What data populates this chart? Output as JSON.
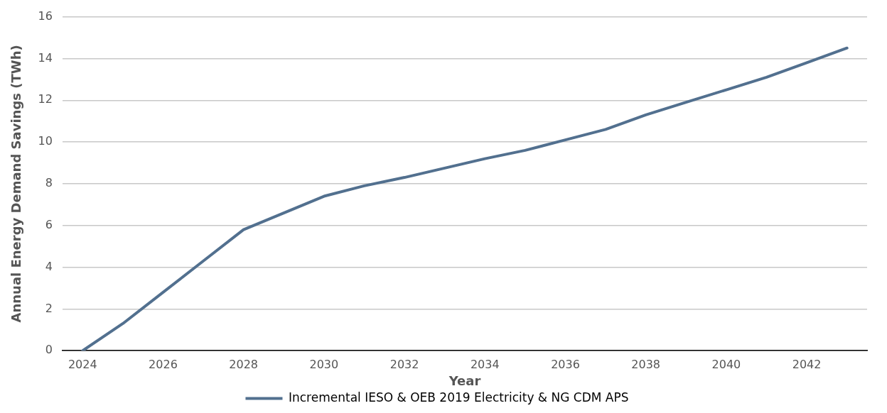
{
  "chart_data": {
    "type": "line",
    "xlabel": "Year",
    "ylabel": "Annual Energy Demand Savings (TWh)",
    "categories": [
      "2024",
      null,
      "2026",
      null,
      "2028",
      null,
      "2030",
      null,
      "2032",
      null,
      "2034",
      null,
      "2036",
      null,
      "2038",
      null,
      "2040",
      null,
      "2042",
      null
    ],
    "series": [
      {
        "name": "Incremental IESO & OEB 2019 Electricity & NG CDM APS",
        "color": "#52708f",
        "values": [
          0,
          1.3,
          2.8,
          4.3,
          5.8,
          6.6,
          7.4,
          7.9,
          8.3,
          8.75,
          9.2,
          9.6,
          10.1,
          10.6,
          11.3,
          11.9,
          12.5,
          13.1,
          13.8,
          14.5
        ]
      }
    ],
    "ylim": [
      0,
      16
    ],
    "yticks": [
      0,
      2,
      4,
      6,
      8,
      10,
      12,
      14,
      16
    ],
    "grid": "y",
    "legend": "bottom",
    "marker": "none",
    "line_style": "solid"
  }
}
